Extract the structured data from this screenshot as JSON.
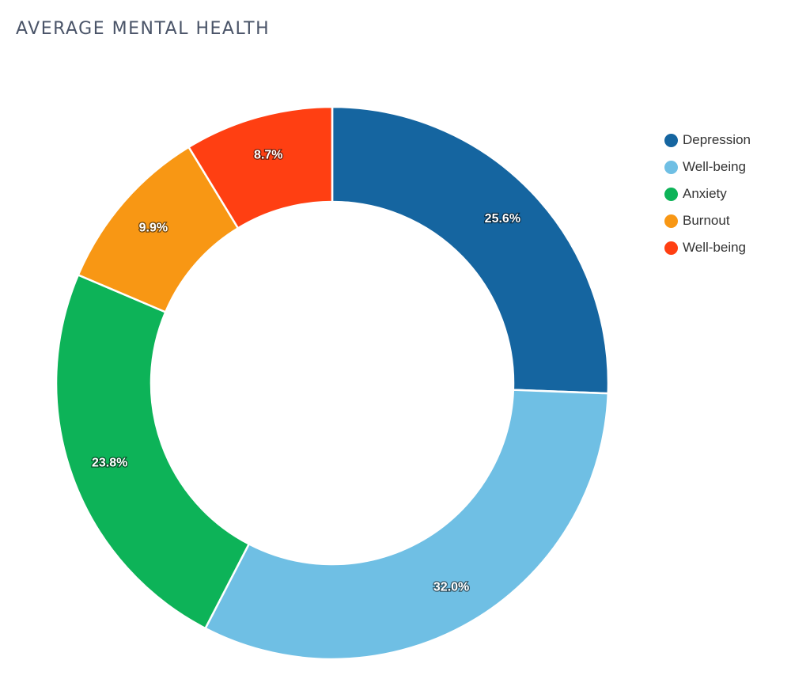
{
  "title": "AVERAGE MENTAL HEALTH",
  "chart_data": {
    "type": "pie",
    "donut": true,
    "legend_position": "top-right",
    "slices": [
      {
        "name": "Depression",
        "value": 25.6,
        "label": "25.6%",
        "color": "#1565a0"
      },
      {
        "name": "Well-being",
        "value": 32.0,
        "label": "32.0%",
        "color": "#6fbfe4"
      },
      {
        "name": "Anxiety",
        "value": 23.8,
        "label": "23.8%",
        "color": "#0db358"
      },
      {
        "name": "Burnout",
        "value": 9.9,
        "label": "9.9%",
        "color": "#f89714"
      },
      {
        "name": "Well-being",
        "value": 8.7,
        "label": "8.7%",
        "color": "#ff3f12"
      }
    ]
  }
}
